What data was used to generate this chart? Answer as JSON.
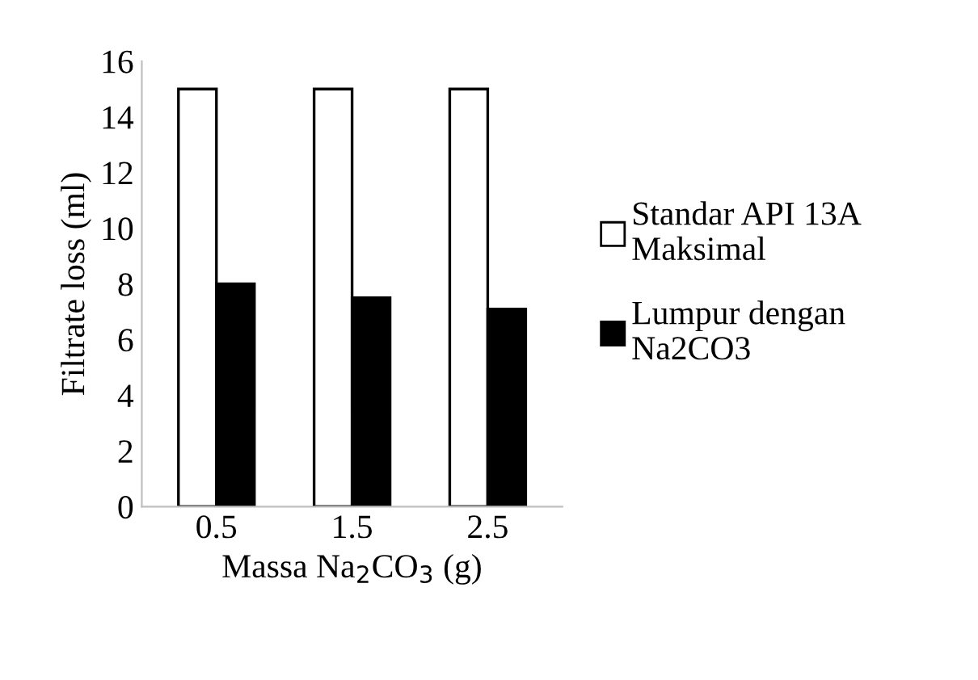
{
  "chart_data": {
    "type": "bar",
    "xlabel": "Massa Na$_{2}$CO$_{3}$ (g)",
    "ylabel": "Filtrate loss (ml)",
    "categories": [
      "0.5",
      "1.5",
      "2.5"
    ],
    "series": [
      {
        "name": "Standar API 13A Maksimal",
        "color": "#ffffff",
        "values": [
          15,
          15,
          15
        ]
      },
      {
        "name": "Lumpur dengan Na2CO3",
        "color": "#000000",
        "values": [
          8,
          7.5,
          7.1
        ]
      }
    ],
    "ylim": [
      0,
      16
    ],
    "yticks": [
      0,
      2,
      4,
      6,
      8,
      10,
      12,
      14,
      16
    ],
    "grid": false,
    "legend": "right"
  }
}
